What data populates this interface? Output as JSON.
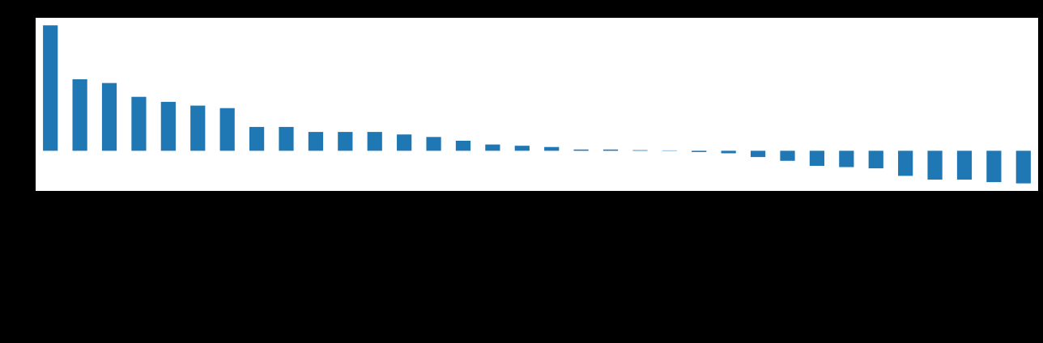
{
  "chart_data": {
    "type": "bar",
    "categories": [
      null,
      null,
      null,
      null,
      null,
      null,
      null,
      null,
      null,
      null,
      null,
      null,
      null,
      null,
      null,
      null,
      null,
      null,
      null,
      null,
      null,
      null,
      null,
      null,
      null,
      null,
      null,
      null,
      null,
      null,
      null,
      null,
      null,
      null
    ],
    "values": [
      1.0,
      0.57,
      0.54,
      0.43,
      0.39,
      0.36,
      0.34,
      0.19,
      0.19,
      0.15,
      0.15,
      0.15,
      0.13,
      0.11,
      0.08,
      0.05,
      0.04,
      0.03,
      0.01,
      0.01,
      0.005,
      0.003,
      -0.01,
      -0.02,
      -0.05,
      -0.08,
      -0.12,
      -0.13,
      -0.14,
      -0.2,
      -0.23,
      -0.23,
      -0.25,
      -0.26
    ],
    "color": "#1f77b4",
    "ylim": [
      -0.32,
      1.06
    ]
  }
}
